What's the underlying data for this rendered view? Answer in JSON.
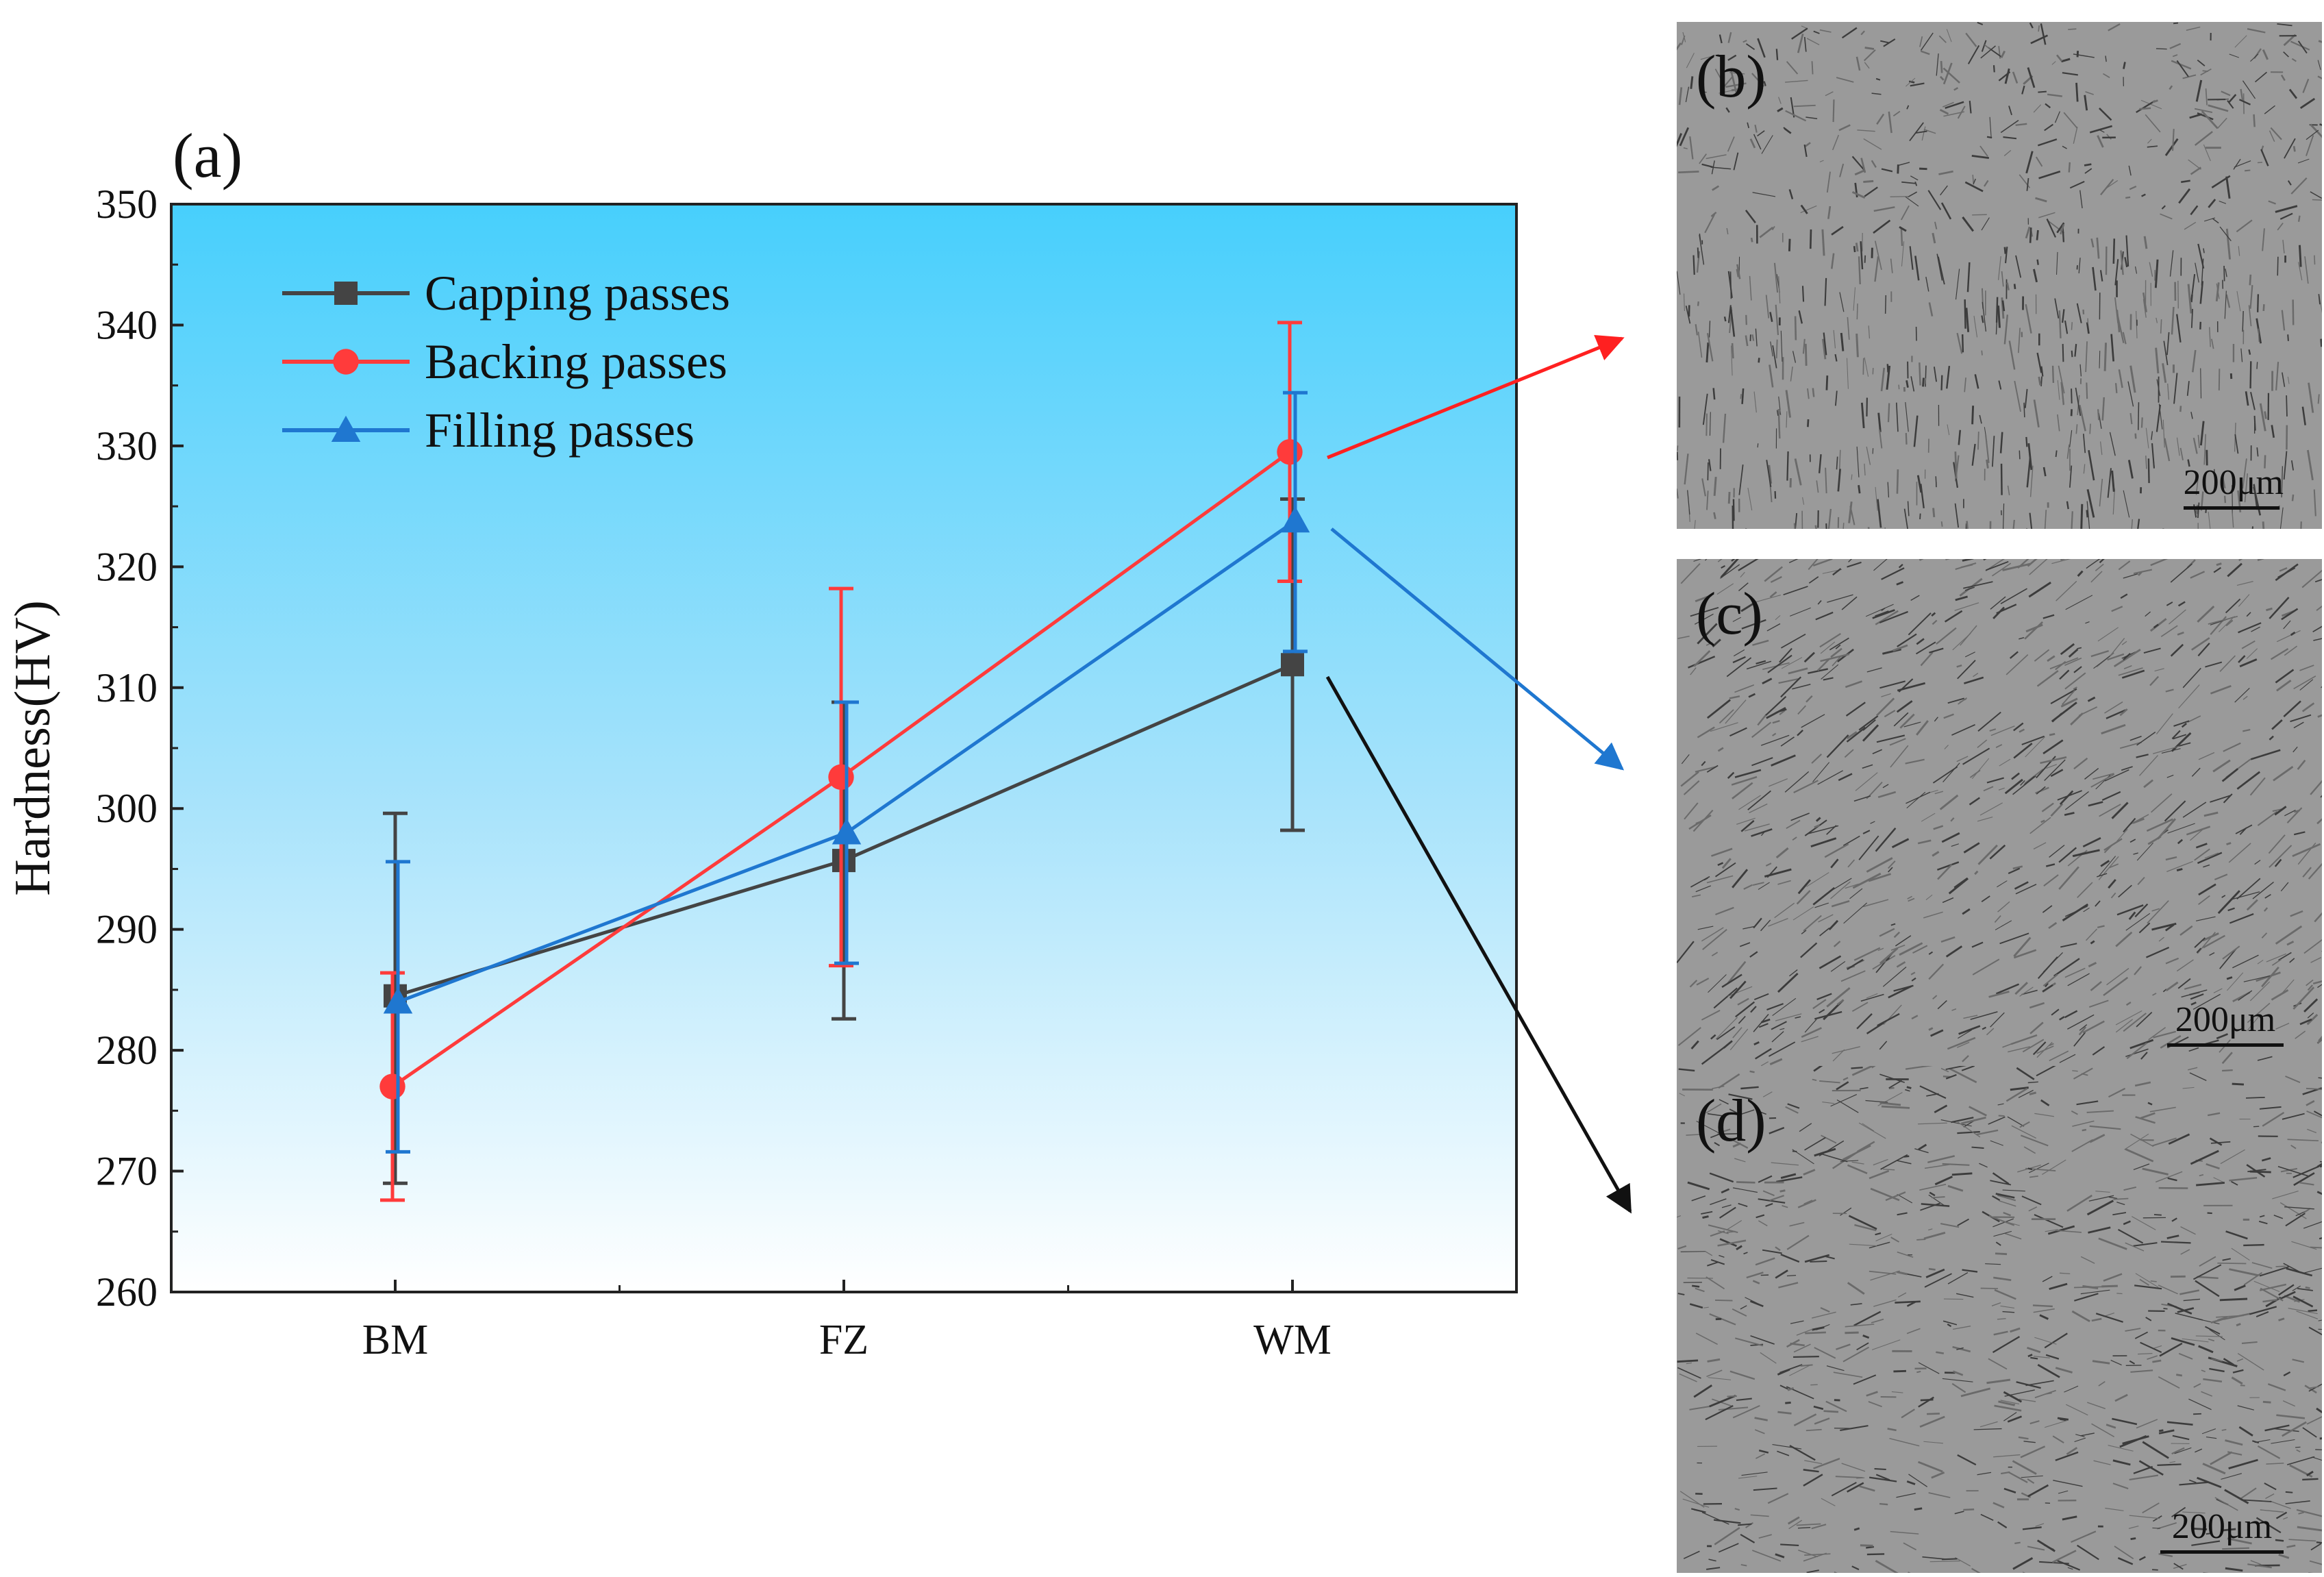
{
  "chart_data": {
    "type": "line",
    "panel_label": "(a)",
    "title": "",
    "xlabel": "",
    "ylabel": "Hardness(HV)",
    "categories": [
      "BM",
      "FZ",
      "WM"
    ],
    "ylim": [
      260,
      350
    ],
    "yticks": [
      260,
      270,
      280,
      290,
      300,
      310,
      320,
      330,
      340,
      350
    ],
    "legend_position": "top-left",
    "series": [
      {
        "name": "Capping passes",
        "marker": "square",
        "color": "#444444",
        "values": [
          284.5,
          295.7,
          311.9
        ],
        "err_low": [
          269.0,
          282.6,
          298.2
        ],
        "err_high": [
          299.6,
          308.8,
          325.6
        ]
      },
      {
        "name": "Backing passes",
        "marker": "circle",
        "color": "#ff3b3b",
        "values": [
          277.0,
          302.6,
          329.5
        ],
        "err_low": [
          267.6,
          287.0,
          318.8
        ],
        "err_high": [
          286.4,
          318.2,
          340.2
        ]
      },
      {
        "name": "Filling passes",
        "marker": "triangle",
        "color": "#1f77d0",
        "values": [
          284.0,
          298.0,
          323.8
        ],
        "err_low": [
          271.6,
          287.2,
          313.0
        ],
        "err_high": [
          295.6,
          308.8,
          334.4
        ]
      }
    ]
  },
  "micrographs": [
    {
      "label": "(b)",
      "scale": "200μm",
      "arrow_color": "#ff2020"
    },
    {
      "label": "(c)",
      "scale": "200μm",
      "arrow_color": "#1f77d0"
    },
    {
      "label": "(d)",
      "scale": "200μm",
      "arrow_color": "#111111"
    }
  ]
}
